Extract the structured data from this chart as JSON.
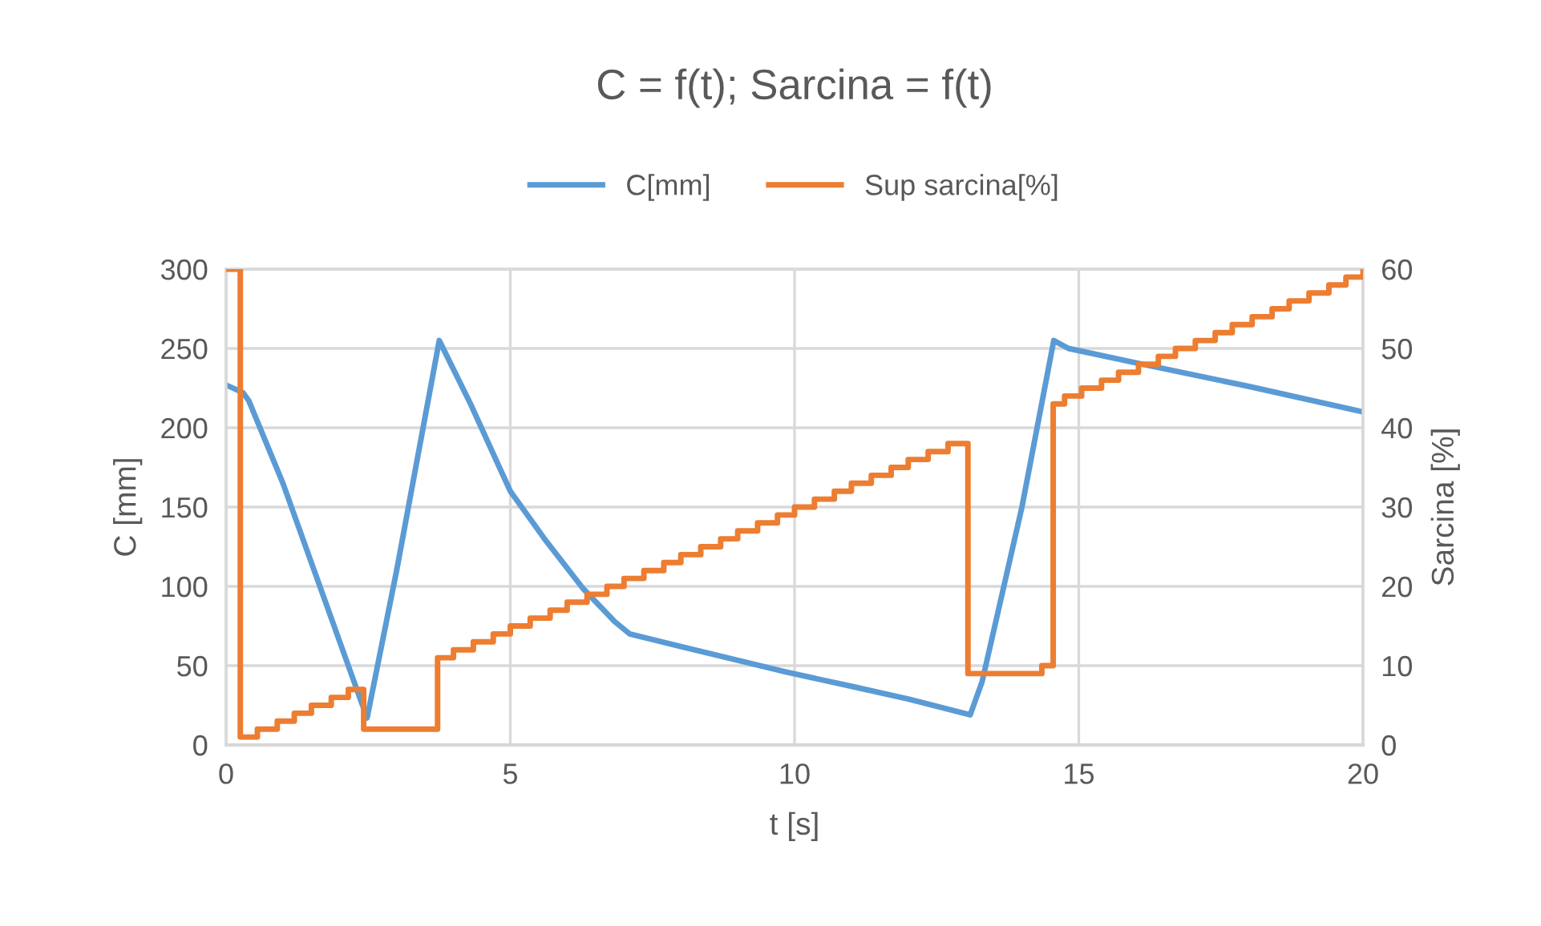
{
  "chart_data": {
    "type": "line",
    "title": "C = f(t); Sarcina = f(t)",
    "xlabel": "t [s]",
    "ylabel": "C [mm]",
    "y2label": "Sarcina [%]",
    "xlim": [
      0,
      20
    ],
    "xticks": [
      0,
      5,
      10,
      15,
      20
    ],
    "ylim": [
      0,
      300
    ],
    "yticks": [
      0,
      50,
      100,
      150,
      200,
      250,
      300
    ],
    "y2lim": [
      0,
      60
    ],
    "y2ticks": [
      0,
      10,
      20,
      30,
      40,
      50,
      60
    ],
    "grid": true,
    "legend": "top",
    "line_style": "solid",
    "marker": "none",
    "series": [
      {
        "name": "C[mm]",
        "color": "#5b9bd5",
        "x": [
          0,
          0.3,
          0.4,
          1.0,
          1.5,
          2.0,
          2.48,
          3.0,
          3.75,
          4.3,
          5.0,
          5.6,
          6.27,
          6.83,
          7.1,
          8.0,
          9.85,
          11.0,
          12.0,
          13.09,
          13.3,
          14.0,
          14.56,
          14.82,
          16.0,
          18.0,
          20.0
        ],
        "values": [
          227,
          222,
          217,
          165,
          115,
          65,
          17,
          110,
          255,
          215,
          160,
          130,
          99,
          78,
          70,
          62,
          46,
          37,
          29,
          19,
          40,
          150,
          255,
          250,
          241,
          226,
          210
        ]
      },
      {
        "name": "Sup sarcina[%]",
        "color": "#ed7d31",
        "type": "step",
        "axis": "y2",
        "x": [
          0,
          0.25,
          0.55,
          0.9,
          1.2,
          1.5,
          1.85,
          2.15,
          2.42,
          3.72,
          4.0,
          4.35,
          4.7,
          5.0,
          5.35,
          5.7,
          6.0,
          6.35,
          6.7,
          7.0,
          7.35,
          7.7,
          8.0,
          8.35,
          8.7,
          9.0,
          9.35,
          9.7,
          10.0,
          10.35,
          10.7,
          11.0,
          11.35,
          11.7,
          12.0,
          12.35,
          12.7,
          13.05,
          14.35,
          14.55,
          14.75,
          15.05,
          15.4,
          15.7,
          16.05,
          16.4,
          16.7,
          17.05,
          17.4,
          17.7,
          18.05,
          18.4,
          18.7,
          19.05,
          19.4,
          19.7,
          20
        ],
        "values": [
          60,
          1,
          2,
          3,
          4,
          5,
          6,
          7,
          2,
          11,
          12,
          13,
          14,
          15,
          16,
          17,
          18,
          19,
          20,
          21,
          22,
          23,
          24,
          25,
          26,
          27,
          28,
          29,
          30,
          31,
          32,
          33,
          34,
          35,
          36,
          37,
          38,
          9,
          10,
          43,
          44,
          45,
          46,
          47,
          48,
          49,
          50,
          51,
          52,
          53,
          54,
          55,
          56,
          57,
          58,
          59,
          60
        ]
      }
    ]
  }
}
